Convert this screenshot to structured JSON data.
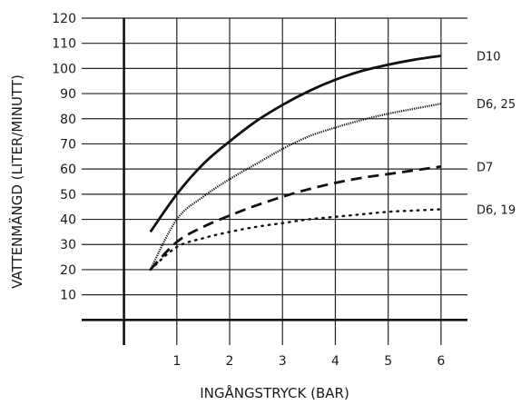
{
  "chart_data": {
    "type": "line",
    "xlabel": "INGÅNGSTRYCK (BAR)",
    "ylabel": "VATTENMÄNGD (LITER/MINUTT)",
    "xlim": [
      -0.8,
      6.5
    ],
    "ylim": [
      -10,
      120
    ],
    "x_ticks": [
      1,
      2,
      3,
      4,
      5,
      6
    ],
    "y_ticks": [
      10,
      20,
      30,
      40,
      50,
      60,
      70,
      80,
      90,
      100,
      110,
      120
    ],
    "grid": true,
    "series": [
      {
        "name": "D10",
        "style": "solid",
        "x": [
          0.5,
          1,
          1.5,
          2,
          2.5,
          3,
          3.5,
          4,
          4.5,
          5,
          5.5,
          6
        ],
        "y": [
          35,
          50,
          62,
          71,
          79,
          85.5,
          91,
          95.5,
          99,
          101.5,
          103.5,
          105
        ]
      },
      {
        "name": "D6, 25",
        "style": "thin-dotted",
        "x": [
          0.5,
          1,
          1.5,
          2,
          2.5,
          3,
          3.5,
          4,
          4.5,
          5,
          5.5,
          6
        ],
        "y": [
          20,
          40,
          49,
          56,
          62,
          68,
          73,
          76.5,
          79.5,
          82,
          84,
          86
        ]
      },
      {
        "name": "D7",
        "style": "dashed",
        "x": [
          0.5,
          1,
          1.5,
          2,
          2.5,
          3,
          3.5,
          4,
          4.5,
          5,
          5.5,
          6
        ],
        "y": [
          20,
          31,
          37,
          41.5,
          45.5,
          49,
          52,
          54.5,
          56.5,
          58,
          59.5,
          61
        ]
      },
      {
        "name": "D6, 19",
        "style": "dotted",
        "x": [
          0.5,
          1,
          1.5,
          2,
          2.5,
          3,
          3.5,
          4,
          4.5,
          5,
          5.5,
          6
        ],
        "y": [
          20,
          29,
          32.5,
          35,
          37,
          38.5,
          40,
          41,
          42,
          43,
          43.5,
          44
        ]
      }
    ]
  }
}
